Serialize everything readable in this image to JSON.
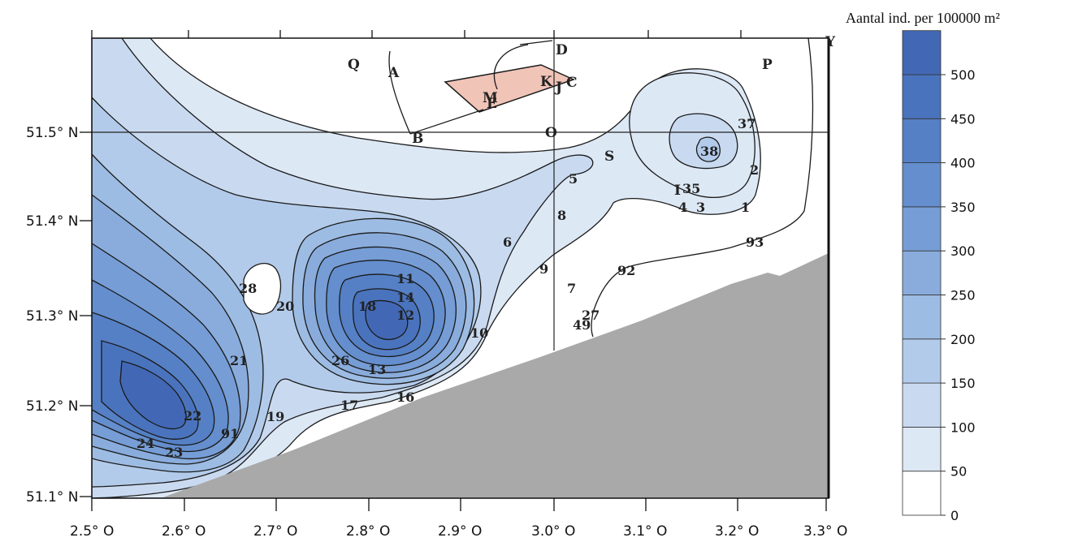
{
  "map": {
    "lat_ticks": [
      "51.5° N",
      "51.4° N",
      "51.3° N",
      "51.2° N",
      "51.1° N"
    ],
    "lon_ticks": [
      "2.5° O",
      "2.6° O",
      "2.7° O",
      "2.8° O",
      "2.9° O",
      "3.0° O",
      "3.1° O",
      "3.2° O",
      "3.3° O"
    ],
    "zones": [
      "Q",
      "A",
      "D",
      "P",
      "K",
      "J",
      "C",
      "M",
      "E",
      "B",
      "O",
      "S",
      "Y",
      "I"
    ],
    "stations": [
      "37",
      "38",
      "2",
      "5",
      "35",
      "4",
      "3",
      "1",
      "8",
      "6",
      "93",
      "9",
      "92",
      "7",
      "28",
      "11",
      "14",
      "12",
      "18",
      "20",
      "27",
      "49",
      "10",
      "21",
      "26",
      "13",
      "16",
      "17",
      "19",
      "22",
      "91",
      "24",
      "23"
    ]
  },
  "legend": {
    "title": "Aantal ind. per 100000 m²",
    "levels": [
      "0",
      "50",
      "100",
      "150",
      "200",
      "250",
      "300",
      "350",
      "400",
      "450",
      "500"
    ],
    "colors": [
      "#ffffff",
      "#dde8f5",
      "#c9daf0",
      "#b3cbea",
      "#9dbce3",
      "#89acdc",
      "#769dd5",
      "#648ecd",
      "#5580c5",
      "#4a73bd",
      "#4268b5"
    ]
  },
  "colors": {
    "land": "#a9a9a9",
    "zone_polygon": "#f1c4b8",
    "contour": "#1a1a1a"
  }
}
